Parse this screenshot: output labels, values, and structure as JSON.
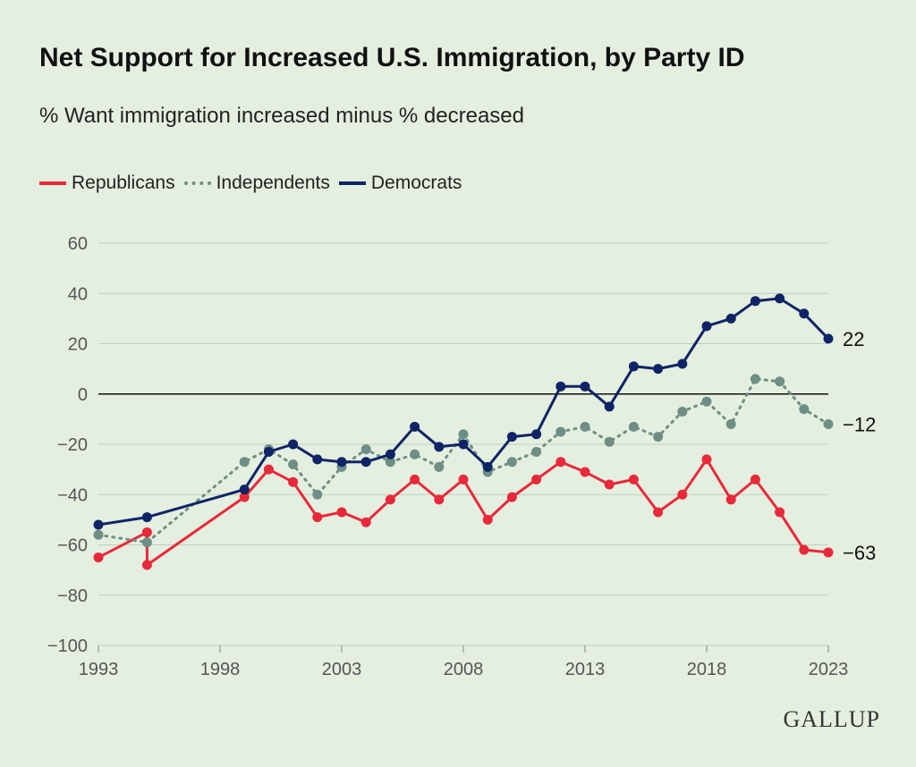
{
  "header": {
    "title": "Net Support for Increased U.S. Immigration, by Party ID",
    "subtitle": "% Want immigration increased minus % decreased"
  },
  "logo": {
    "text": "GALLUP"
  },
  "chart_data": {
    "type": "line",
    "title": "Net Support for Increased U.S. Immigration, by Party ID",
    "subtitle": "% Want immigration increased minus % decreased",
    "xlabel": "",
    "ylabel": "",
    "xlim": [
      1993,
      2023
    ],
    "ylim": [
      -100,
      60
    ],
    "yticks": [
      60,
      40,
      20,
      0,
      -20,
      -40,
      -60,
      -80,
      -100
    ],
    "ytick_labels": [
      "60",
      "40",
      "20",
      "0",
      "−20",
      "−40",
      "−60",
      "−80",
      "−100"
    ],
    "xticks": [
      1993,
      1998,
      2003,
      2008,
      2013,
      2018,
      2023
    ],
    "xtick_labels": [
      "1993",
      "1998",
      "2003",
      "2008",
      "2013",
      "2018",
      "2023"
    ],
    "grid": true,
    "legend_position": "top-left",
    "series": [
      {
        "name": "Republicans",
        "color": "#e8293a",
        "style": "solid",
        "end_label": "−63",
        "points": [
          [
            1993,
            -65
          ],
          [
            1995,
            -55
          ],
          [
            1995,
            -68
          ],
          [
            1999,
            -41
          ],
          [
            2000,
            -30
          ],
          [
            2001,
            -35
          ],
          [
            2002,
            -49
          ],
          [
            2003,
            -47
          ],
          [
            2004,
            -51
          ],
          [
            2005,
            -42
          ],
          [
            2006,
            -34
          ],
          [
            2007,
            -42
          ],
          [
            2008,
            -34
          ],
          [
            2009,
            -50
          ],
          [
            2010,
            -41
          ],
          [
            2011,
            -34
          ],
          [
            2012,
            -27
          ],
          [
            2013,
            -31
          ],
          [
            2014,
            -36
          ],
          [
            2015,
            -34
          ],
          [
            2016,
            -47
          ],
          [
            2017,
            -40
          ],
          [
            2018,
            -26
          ],
          [
            2019,
            -42
          ],
          [
            2020,
            -34
          ],
          [
            2021,
            -47
          ],
          [
            2022,
            -62
          ],
          [
            2023,
            -63
          ]
        ]
      },
      {
        "name": "Independents",
        "color": "#6e8e86",
        "style": "dotted",
        "end_label": "−12",
        "points": [
          [
            1993,
            -56
          ],
          [
            1995,
            -59
          ],
          [
            1999,
            -27
          ],
          [
            2000,
            -22
          ],
          [
            2001,
            -28
          ],
          [
            2002,
            -40
          ],
          [
            2003,
            -29
          ],
          [
            2004,
            -22
          ],
          [
            2005,
            -27
          ],
          [
            2006,
            -24
          ],
          [
            2007,
            -29
          ],
          [
            2008,
            -16
          ],
          [
            2009,
            -31
          ],
          [
            2010,
            -27
          ],
          [
            2011,
            -23
          ],
          [
            2012,
            -15
          ],
          [
            2013,
            -13
          ],
          [
            2014,
            -19
          ],
          [
            2015,
            -13
          ],
          [
            2016,
            -17
          ],
          [
            2017,
            -7
          ],
          [
            2018,
            -3
          ],
          [
            2019,
            -12
          ],
          [
            2020,
            6
          ],
          [
            2021,
            5
          ],
          [
            2022,
            -6
          ],
          [
            2023,
            -12
          ]
        ]
      },
      {
        "name": "Democrats",
        "color": "#0e2466",
        "style": "solid",
        "end_label": "22",
        "points": [
          [
            1993,
            -52
          ],
          [
            1995,
            -49
          ],
          [
            1999,
            -38
          ],
          [
            2000,
            -23
          ],
          [
            2001,
            -20
          ],
          [
            2002,
            -26
          ],
          [
            2003,
            -27
          ],
          [
            2004,
            -27
          ],
          [
            2005,
            -24
          ],
          [
            2006,
            -13
          ],
          [
            2007,
            -21
          ],
          [
            2008,
            -20
          ],
          [
            2009,
            -29
          ],
          [
            2010,
            -17
          ],
          [
            2011,
            -16
          ],
          [
            2012,
            3
          ],
          [
            2013,
            3
          ],
          [
            2014,
            -5
          ],
          [
            2015,
            11
          ],
          [
            2016,
            10
          ],
          [
            2017,
            12
          ],
          [
            2018,
            27
          ],
          [
            2019,
            30
          ],
          [
            2020,
            37
          ],
          [
            2021,
            38
          ],
          [
            2022,
            32
          ],
          [
            2023,
            22
          ]
        ]
      }
    ]
  }
}
